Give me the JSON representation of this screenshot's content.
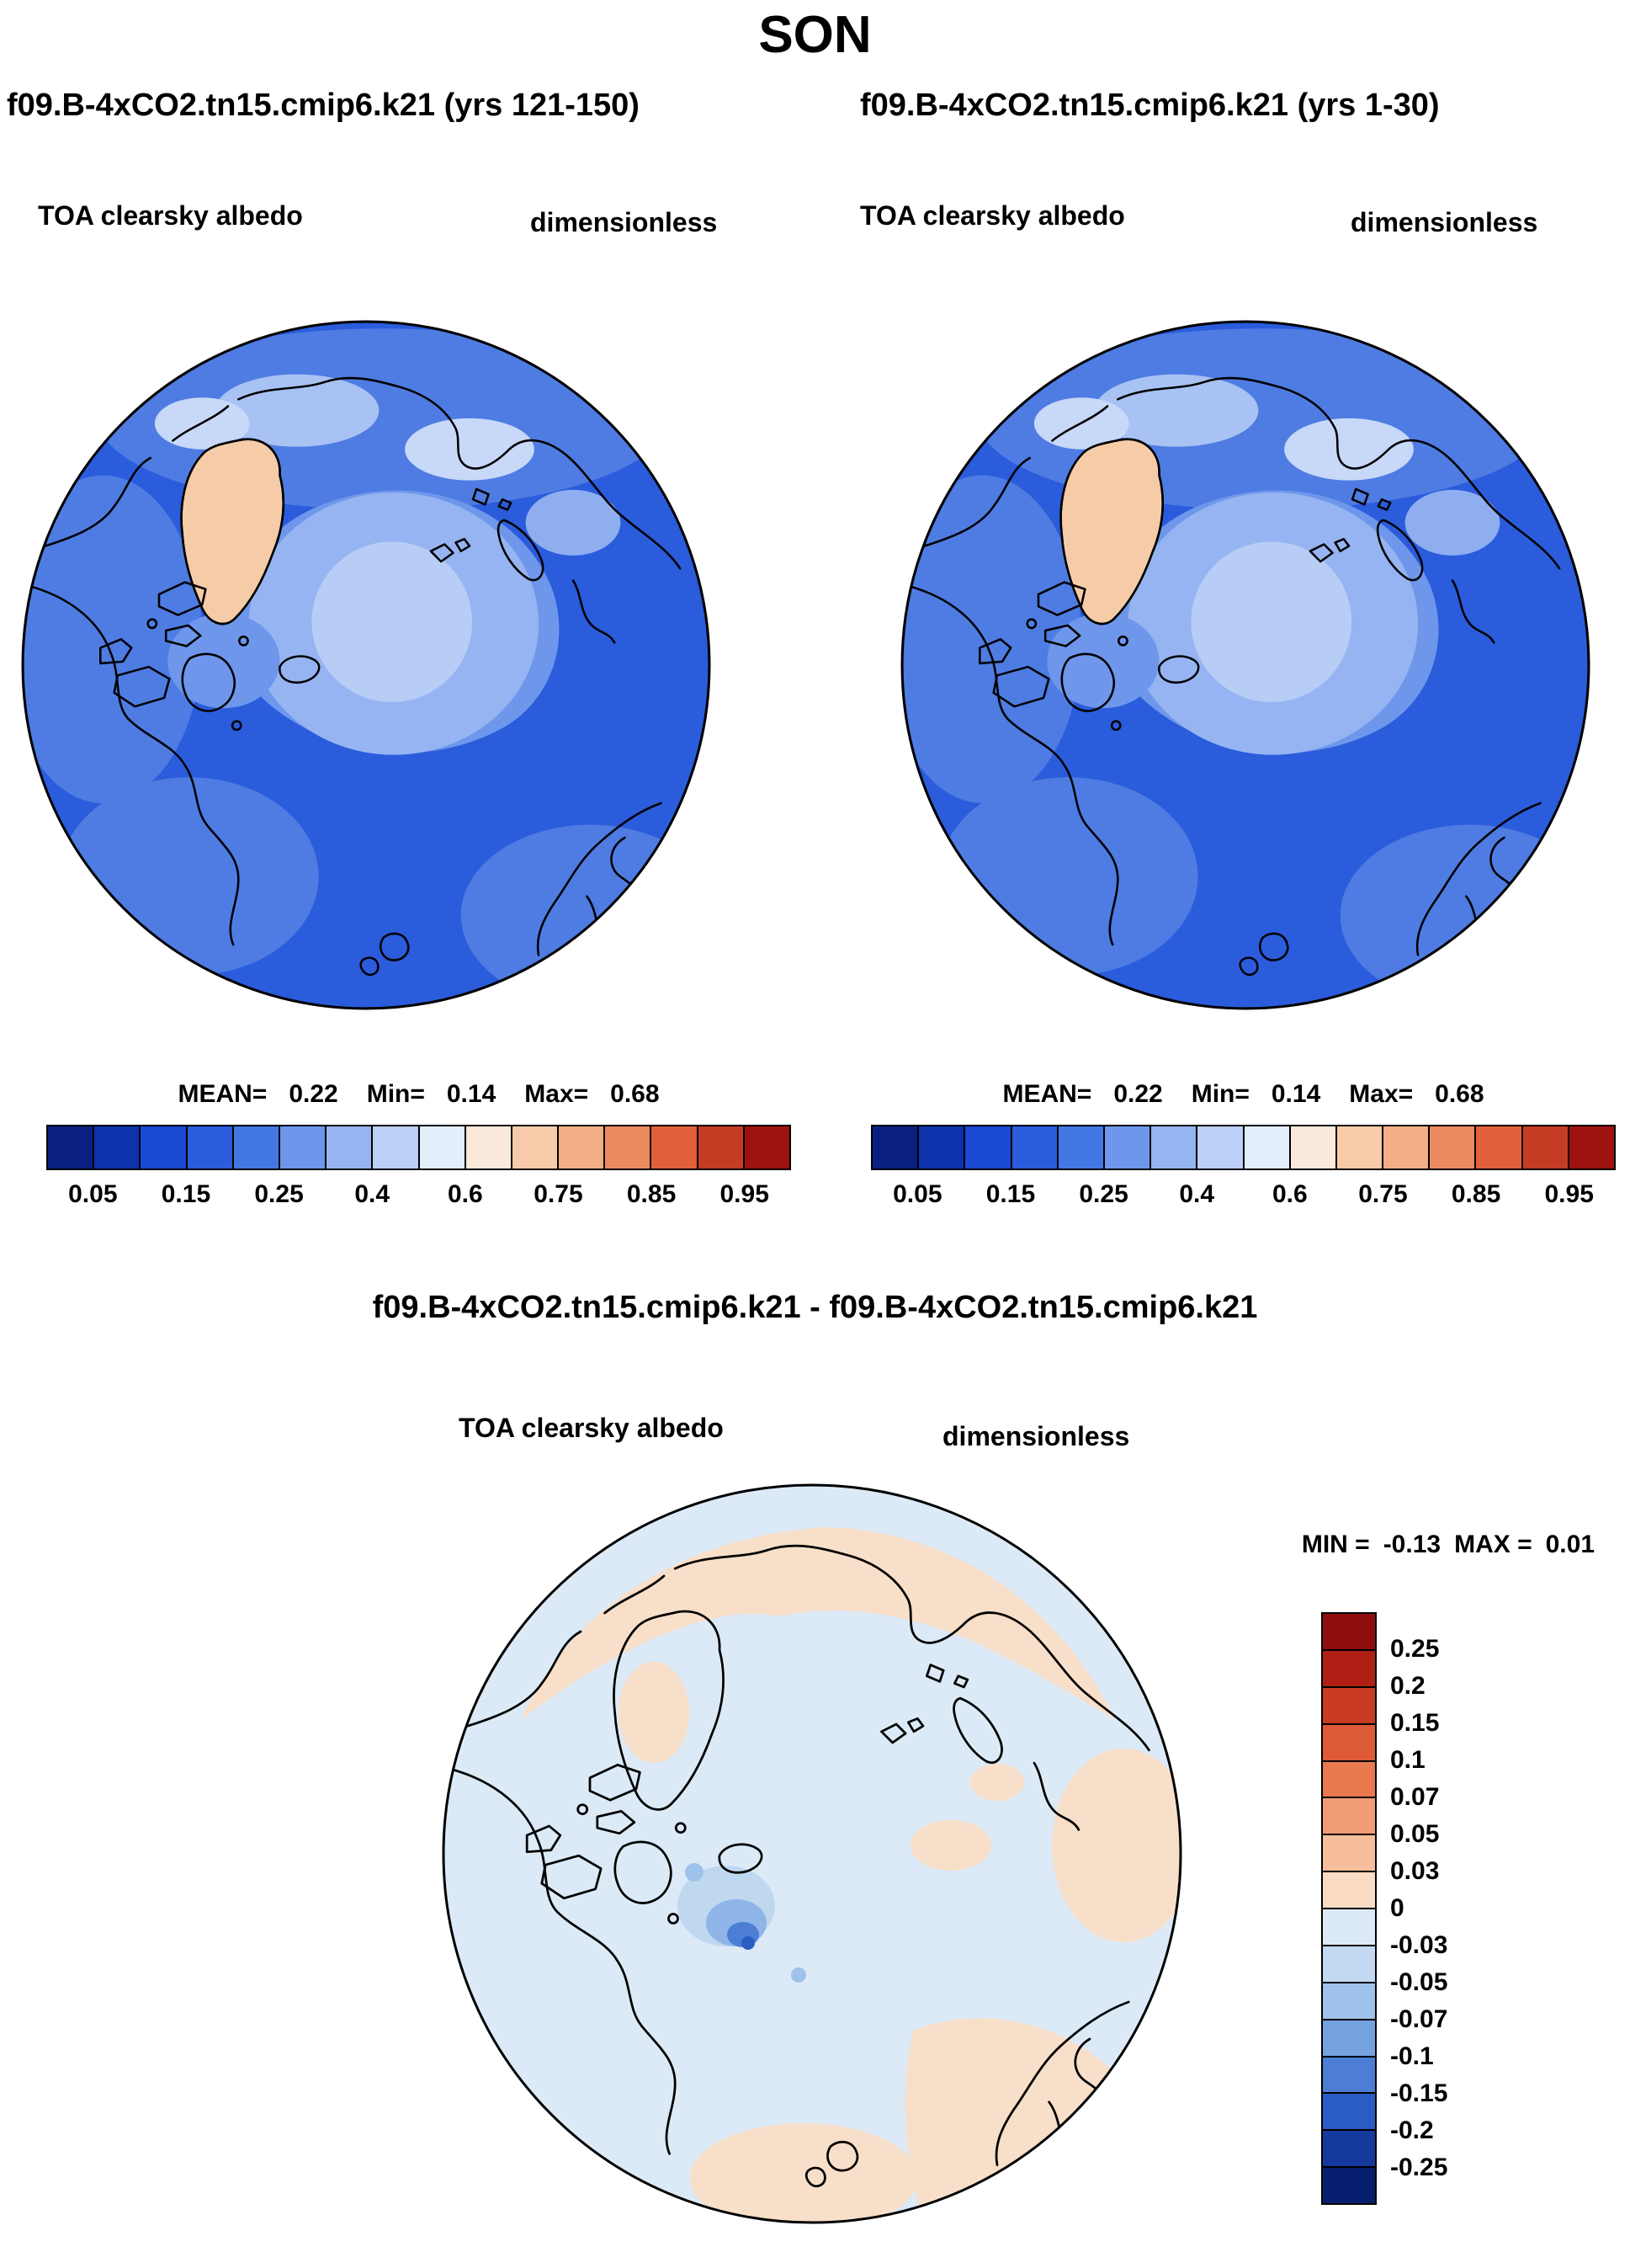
{
  "page": {
    "title": "SON"
  },
  "panels": [
    {
      "title": "f09.B-4xCO2.tn15.cmip6.k21 (yrs 121-150)",
      "variable": "TOA clearsky albedo",
      "units": "dimensionless",
      "stats": {
        "mean_label": "MEAN=",
        "mean": "0.22",
        "min_label": "Min=",
        "min": "0.14",
        "max_label": "Max=",
        "max": "0.68"
      }
    },
    {
      "title": "f09.B-4xCO2.tn15.cmip6.k21 (yrs 1-30)",
      "variable": "TOA clearsky albedo",
      "units": "dimensionless",
      "stats": {
        "mean_label": "MEAN=",
        "mean": "0.22",
        "min_label": "Min=",
        "min": "0.14",
        "max_label": "Max=",
        "max": "0.68"
      }
    }
  ],
  "abs_colorbar": {
    "tick_labels": [
      "0.05",
      "0.15",
      "0.25",
      "0.4",
      "0.6",
      "0.75",
      "0.85",
      "0.95"
    ],
    "colors": [
      "#0A2080",
      "#0C33AC",
      "#1A49D2",
      "#2A5CDC",
      "#4377E4",
      "#6E97EC",
      "#96B4F1",
      "#BCD0F7",
      "#E4EDFB",
      "#FBE9DB",
      "#F7CBAA",
      "#F3AE87",
      "#EC8A5F",
      "#E1603A",
      "#C43C24",
      "#9E1210"
    ]
  },
  "diff": {
    "title": "f09.B-4xCO2.tn15.cmip6.k21 - f09.B-4xCO2.tn15.cmip6.k21",
    "variable": "TOA clearsky albedo",
    "units": "dimensionless",
    "stats": {
      "min_label": "MIN =",
      "min": "-0.13",
      "max_label": "MAX =",
      "max": "0.01"
    },
    "colorbar": {
      "tick_labels": [
        "0.25",
        "0.2",
        "0.15",
        "0.1",
        "0.07",
        "0.05",
        "0.03",
        "0",
        "-0.03",
        "-0.05",
        "-0.07",
        "-0.1",
        "-0.15",
        "-0.2",
        "-0.25"
      ],
      "colors": [
        "#8F0E0D",
        "#B01F14",
        "#C93B22",
        "#DC5B36",
        "#E97A50",
        "#F19C74",
        "#F6BE9C",
        "#FADCC4",
        "#DCEAF7",
        "#C2D9F1",
        "#9FC2EA",
        "#74A1E0",
        "#4B7ED4",
        "#2B5CC4",
        "#16399E",
        "#081F70"
      ]
    }
  },
  "chart_data": [
    {
      "type": "heatmap",
      "title": "f09.B-4xCO2.tn15.cmip6.k21 (yrs 121-150)",
      "season": "SON",
      "variable": "TOA clearsky albedo",
      "units": "dimensionless",
      "projection": "north polar stereographic",
      "stats": {
        "mean": 0.22,
        "min": 0.14,
        "max": 0.68
      },
      "colorbar_tick_labels": [
        0.05,
        0.15,
        0.25,
        0.4,
        0.6,
        0.75,
        0.85,
        0.95
      ],
      "colorbar_colors": [
        "#0A2080",
        "#0C33AC",
        "#1A49D2",
        "#2A5CDC",
        "#4377E4",
        "#6E97EC",
        "#96B4F1",
        "#BCD0F7",
        "#E4EDFB",
        "#FBE9DB",
        "#F7CBAA",
        "#F3AE87",
        "#EC8A5F",
        "#E1603A",
        "#C43C24",
        "#9E1210"
      ],
      "legend_position": "bottom"
    },
    {
      "type": "heatmap",
      "title": "f09.B-4xCO2.tn15.cmip6.k21 (yrs 1-30)",
      "season": "SON",
      "variable": "TOA clearsky albedo",
      "units": "dimensionless",
      "projection": "north polar stereographic",
      "stats": {
        "mean": 0.22,
        "min": 0.14,
        "max": 0.68
      },
      "colorbar_tick_labels": [
        0.05,
        0.15,
        0.25,
        0.4,
        0.6,
        0.75,
        0.85,
        0.95
      ],
      "colorbar_colors": [
        "#0A2080",
        "#0C33AC",
        "#1A49D2",
        "#2A5CDC",
        "#4377E4",
        "#6E97EC",
        "#96B4F1",
        "#BCD0F7",
        "#E4EDFB",
        "#FBE9DB",
        "#F7CBAA",
        "#F3AE87",
        "#EC8A5F",
        "#E1603A",
        "#C43C24",
        "#9E1210"
      ],
      "legend_position": "bottom"
    },
    {
      "type": "heatmap",
      "title": "f09.B-4xCO2.tn15.cmip6.k21 - f09.B-4xCO2.tn15.cmip6.k21",
      "season": "SON",
      "variable": "TOA clearsky albedo",
      "units": "dimensionless",
      "projection": "north polar stereographic",
      "stats": {
        "min": -0.13,
        "max": 0.01
      },
      "colorbar_tick_labels": [
        0.25,
        0.2,
        0.15,
        0.1,
        0.07,
        0.05,
        0.03,
        0,
        -0.03,
        -0.05,
        -0.07,
        -0.1,
        -0.15,
        -0.2,
        -0.25
      ],
      "colorbar_colors": [
        "#8F0E0D",
        "#B01F14",
        "#C93B22",
        "#DC5B36",
        "#E97A50",
        "#F19C74",
        "#F6BE9C",
        "#FADCC4",
        "#DCEAF7",
        "#C2D9F1",
        "#9FC2EA",
        "#74A1E0",
        "#4B7ED4",
        "#2B5CC4",
        "#16399E",
        "#081F70"
      ],
      "legend_position": "right"
    }
  ]
}
